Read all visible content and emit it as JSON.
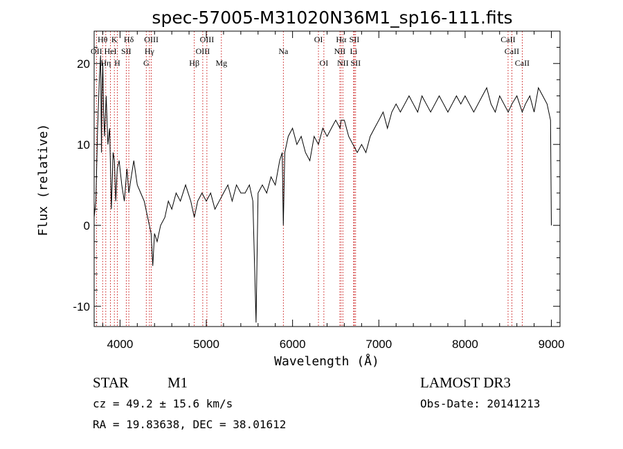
{
  "chart_data": {
    "type": "line",
    "title": "spec-57005-M31020N36M1_sp16-111.fits",
    "xlabel": "Wavelength (Å)",
    "ylabel": "Flux (relative)",
    "xlim": [
      3700,
      9100
    ],
    "ylim": [
      -12.5,
      24
    ],
    "x_ticks": [
      4000,
      5000,
      6000,
      7000,
      8000,
      9000
    ],
    "y_ticks": [
      -10,
      0,
      10,
      20
    ],
    "grid": false,
    "series": [
      {
        "x": [
          3700,
          3720,
          3740,
          3760,
          3775,
          3785,
          3790,
          3800,
          3810,
          3820,
          3840,
          3860,
          3880,
          3900,
          3920,
          3935,
          3950,
          3968,
          3990,
          4020,
          4050,
          4080,
          4102,
          4130,
          4160,
          4200,
          4240,
          4280,
          4320,
          4340,
          4360,
          4380,
          4400,
          4430,
          4470,
          4520,
          4560,
          4600,
          4650,
          4700,
          4760,
          4820,
          4861,
          4900,
          4950,
          5000,
          5050,
          5100,
          5150,
          5200,
          5250,
          5300,
          5350,
          5400,
          5450,
          5500,
          5540,
          5577,
          5600,
          5650,
          5700,
          5750,
          5800,
          5850,
          5880,
          5893,
          5910,
          5950,
          6000,
          6050,
          6100,
          6150,
          6200,
          6250,
          6300,
          6350,
          6400,
          6450,
          6500,
          6550,
          6563,
          6600,
          6650,
          6700,
          6750,
          6800,
          6850,
          6900,
          6950,
          7000,
          7050,
          7100,
          7150,
          7200,
          7250,
          7300,
          7350,
          7400,
          7450,
          7500,
          7550,
          7600,
          7650,
          7700,
          7750,
          7800,
          7850,
          7900,
          7950,
          8000,
          8050,
          8100,
          8150,
          8200,
          8250,
          8300,
          8350,
          8400,
          8450,
          8500,
          8542,
          8600,
          8662,
          8700,
          8750,
          8800,
          8850,
          8900,
          8950,
          8990,
          9000
        ],
        "y": [
          1,
          3,
          12,
          18,
          21,
          9,
          16,
          20,
          14,
          11,
          16,
          10,
          12,
          2,
          9,
          8,
          3,
          7,
          8,
          5,
          3,
          7,
          4,
          6,
          8,
          5,
          4,
          3,
          1,
          0,
          -1,
          -5,
          -1,
          -2,
          0,
          1,
          3,
          2,
          4,
          3,
          5,
          3,
          1,
          3,
          4,
          3,
          4,
          2,
          3,
          4,
          5,
          3,
          5,
          4,
          4,
          5,
          3,
          -12,
          4,
          5,
          4,
          6,
          5,
          8,
          9,
          0,
          9,
          11,
          12,
          10,
          11,
          9,
          8,
          11,
          10,
          12,
          11,
          12,
          13,
          12,
          13,
          13,
          11,
          10,
          9,
          10,
          9,
          11,
          12,
          13,
          14,
          12,
          14,
          15,
          14,
          15,
          16,
          15,
          14,
          16,
          15,
          14,
          15,
          16,
          15,
          14,
          15,
          16,
          15,
          16,
          15,
          14,
          15,
          16,
          17,
          15,
          14,
          16,
          15,
          14,
          15,
          16,
          14,
          15,
          16,
          14,
          17,
          16,
          15,
          13,
          0
        ]
      }
    ],
    "spectral_lines": [
      {
        "wl": 3727,
        "label": "OII",
        "row": 2
      },
      {
        "wl": 3798,
        "label": "Hθ",
        "row": 1
      },
      {
        "wl": 3835,
        "label": "Hη",
        "row": 3
      },
      {
        "wl": 3889,
        "label": "HeI",
        "row": 2
      },
      {
        "wl": 3934,
        "label": "K",
        "row": 1
      },
      {
        "wl": 3968,
        "label": "H",
        "row": 3
      },
      {
        "wl": 4072,
        "label": "SII",
        "row": 2
      },
      {
        "wl": 4102,
        "label": "Hδ",
        "row": 1
      },
      {
        "wl": 4304,
        "label": "G",
        "row": 3
      },
      {
        "wl": 4341,
        "label": "Hγ",
        "row": 2
      },
      {
        "wl": 4363,
        "label": "OIII",
        "row": 1
      },
      {
        "wl": 4861,
        "label": "Hβ",
        "row": 3
      },
      {
        "wl": 4959,
        "label": "OIII",
        "row": 2
      },
      {
        "wl": 5007,
        "label": "OIII",
        "row": 1
      },
      {
        "wl": 5175,
        "label": "Mg",
        "row": 3
      },
      {
        "wl": 5893,
        "label": "Na",
        "row": 2
      },
      {
        "wl": 6300,
        "label": "OI",
        "row": 1
      },
      {
        "wl": 6363,
        "label": "OI",
        "row": 3
      },
      {
        "wl": 6548,
        "label": "NII",
        "row": 2
      },
      {
        "wl": 6563,
        "label": "Hα",
        "row": 1
      },
      {
        "wl": 6583,
        "label": "NII",
        "row": 3
      },
      {
        "wl": 6708,
        "label": "Li",
        "row": 2
      },
      {
        "wl": 6716,
        "label": "SII",
        "row": 1
      },
      {
        "wl": 6731,
        "label": "SII",
        "row": 3
      },
      {
        "wl": 8498,
        "label": "CaII",
        "row": 1
      },
      {
        "wl": 8542,
        "label": "CaII",
        "row": 2
      },
      {
        "wl": 8662,
        "label": "CaII",
        "row": 3
      }
    ],
    "line_color": "#000000",
    "marker_color": "#cc2222"
  },
  "info": {
    "object_class": "STAR",
    "subclass": "M1",
    "survey": "LAMOST DR3",
    "cz": "cz = 49.2 ± 15.6 km/s",
    "obs_date": "Obs-Date: 20141213",
    "coords": "RA =  19.83638, DEC =  38.01612"
  }
}
